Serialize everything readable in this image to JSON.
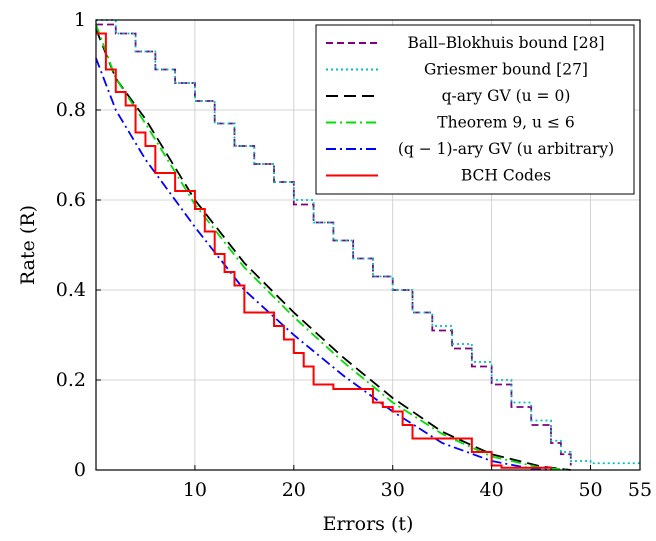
{
  "chart_data": {
    "type": "line",
    "title": "",
    "xlabel": "Errors (t)",
    "ylabel": "Rate (R)",
    "xlim": [
      0,
      55
    ],
    "ylim": [
      0,
      1
    ],
    "grid": true,
    "legend_position": "top-right",
    "x_ticks": [
      {
        "value": 10,
        "label": "10"
      },
      {
        "value": 20,
        "label": "20"
      },
      {
        "value": 30,
        "label": "30"
      },
      {
        "value": 40,
        "label": "40"
      },
      {
        "value": 50,
        "label": "50"
      },
      {
        "value": 55,
        "label": "55"
      }
    ],
    "y_ticks": [
      {
        "value": 0,
        "label": "0"
      },
      {
        "value": 0.2,
        "label": "0.2"
      },
      {
        "value": 0.4,
        "label": "0.4"
      },
      {
        "value": 0.6,
        "label": "0.6"
      },
      {
        "value": 0.8,
        "label": "0.8"
      },
      {
        "value": 1,
        "label": "1"
      }
    ],
    "series": [
      {
        "name": "Ball–Blokhuis bound [28]",
        "color": "#800080",
        "dash": "7,4",
        "step": true,
        "points": [
          [
            0,
            0.99
          ],
          [
            2,
            0.97
          ],
          [
            4,
            0.93
          ],
          [
            6,
            0.89
          ],
          [
            8,
            0.86
          ],
          [
            10,
            0.82
          ],
          [
            12,
            0.77
          ],
          [
            14,
            0.72
          ],
          [
            16,
            0.68
          ],
          [
            18,
            0.64
          ],
          [
            20,
            0.59
          ],
          [
            22,
            0.55
          ],
          [
            24,
            0.51
          ],
          [
            26,
            0.47
          ],
          [
            28,
            0.43
          ],
          [
            30,
            0.4
          ],
          [
            32,
            0.35
          ],
          [
            34,
            0.31
          ],
          [
            36,
            0.27
          ],
          [
            38,
            0.23
          ],
          [
            40,
            0.19
          ],
          [
            42,
            0.14
          ],
          [
            44,
            0.1
          ],
          [
            46,
            0.06
          ],
          [
            47,
            0.035
          ],
          [
            48,
            0.01
          ]
        ]
      },
      {
        "name": "Griesmer bound [27]",
        "color": "#00bfbf",
        "dash": "2,3",
        "step": true,
        "points": [
          [
            0,
            1.0
          ],
          [
            2,
            0.97
          ],
          [
            4,
            0.93
          ],
          [
            6,
            0.89
          ],
          [
            8,
            0.86
          ],
          [
            10,
            0.82
          ],
          [
            12,
            0.77
          ],
          [
            14,
            0.72
          ],
          [
            16,
            0.68
          ],
          [
            18,
            0.64
          ],
          [
            20,
            0.6
          ],
          [
            22,
            0.55
          ],
          [
            24,
            0.51
          ],
          [
            26,
            0.47
          ],
          [
            28,
            0.43
          ],
          [
            30,
            0.4
          ],
          [
            32,
            0.35
          ],
          [
            34,
            0.32
          ],
          [
            36,
            0.28
          ],
          [
            38,
            0.24
          ],
          [
            40,
            0.2
          ],
          [
            42,
            0.15
          ],
          [
            44,
            0.11
          ],
          [
            46,
            0.065
          ],
          [
            47,
            0.04
          ],
          [
            48,
            0.02
          ],
          [
            50,
            0.015
          ],
          [
            55,
            0.01
          ]
        ]
      },
      {
        "name": "q-ary GV (u = 0)",
        "color": "#000000",
        "dash": "12,6",
        "step": false,
        "points": [
          [
            0,
            0.98
          ],
          [
            2,
            0.87
          ],
          [
            5,
            0.78
          ],
          [
            10,
            0.6
          ],
          [
            15,
            0.46
          ],
          [
            20,
            0.35
          ],
          [
            25,
            0.25
          ],
          [
            30,
            0.16
          ],
          [
            35,
            0.085
          ],
          [
            40,
            0.035
          ],
          [
            45,
            0.008
          ],
          [
            48,
            0.0
          ]
        ]
      },
      {
        "name": "Theorem 9, u ≤ 6",
        "color": "#00e000",
        "dash": "10,4,2,4",
        "step": false,
        "points": [
          [
            0,
            0.99
          ],
          [
            2,
            0.87
          ],
          [
            5,
            0.77
          ],
          [
            10,
            0.59
          ],
          [
            15,
            0.45
          ],
          [
            20,
            0.34
          ],
          [
            25,
            0.24
          ],
          [
            30,
            0.15
          ],
          [
            35,
            0.08
          ],
          [
            40,
            0.03
          ],
          [
            45,
            0.005
          ],
          [
            48,
            0.0
          ]
        ]
      },
      {
        "name": "(q − 1)-ary GV (u arbitrary)",
        "color": "#0000ff",
        "dash": "10,4,2,4",
        "step": false,
        "points": [
          [
            0,
            0.915
          ],
          [
            2,
            0.8
          ],
          [
            5,
            0.69
          ],
          [
            10,
            0.54
          ],
          [
            15,
            0.4
          ],
          [
            20,
            0.3
          ],
          [
            25,
            0.21
          ],
          [
            30,
            0.13
          ],
          [
            35,
            0.06
          ],
          [
            40,
            0.02
          ],
          [
            44,
            0.003
          ],
          [
            46,
            0.0
          ]
        ]
      },
      {
        "name": "BCH Codes",
        "color": "#ff0000",
        "dash": "",
        "step": true,
        "points": [
          [
            0,
            0.97
          ],
          [
            1,
            0.89
          ],
          [
            2,
            0.84
          ],
          [
            3,
            0.81
          ],
          [
            4,
            0.75
          ],
          [
            5,
            0.72
          ],
          [
            6,
            0.66
          ],
          [
            7,
            0.66
          ],
          [
            8,
            0.62
          ],
          [
            10,
            0.58
          ],
          [
            11,
            0.53
          ],
          [
            12,
            0.48
          ],
          [
            13,
            0.44
          ],
          [
            14,
            0.41
          ],
          [
            15,
            0.35
          ],
          [
            16,
            0.35
          ],
          [
            18,
            0.32
          ],
          [
            19,
            0.29
          ],
          [
            20,
            0.26
          ],
          [
            21,
            0.23
          ],
          [
            22,
            0.19
          ],
          [
            24,
            0.18
          ],
          [
            26,
            0.18
          ],
          [
            28,
            0.15
          ],
          [
            29,
            0.14
          ],
          [
            30,
            0.13
          ],
          [
            31,
            0.1
          ],
          [
            32,
            0.07
          ],
          [
            34,
            0.07
          ],
          [
            36,
            0.07
          ],
          [
            38,
            0.04
          ],
          [
            40,
            0.01
          ],
          [
            41,
            0.005
          ],
          [
            44,
            0.005
          ],
          [
            46,
            0.0
          ]
        ]
      }
    ]
  }
}
